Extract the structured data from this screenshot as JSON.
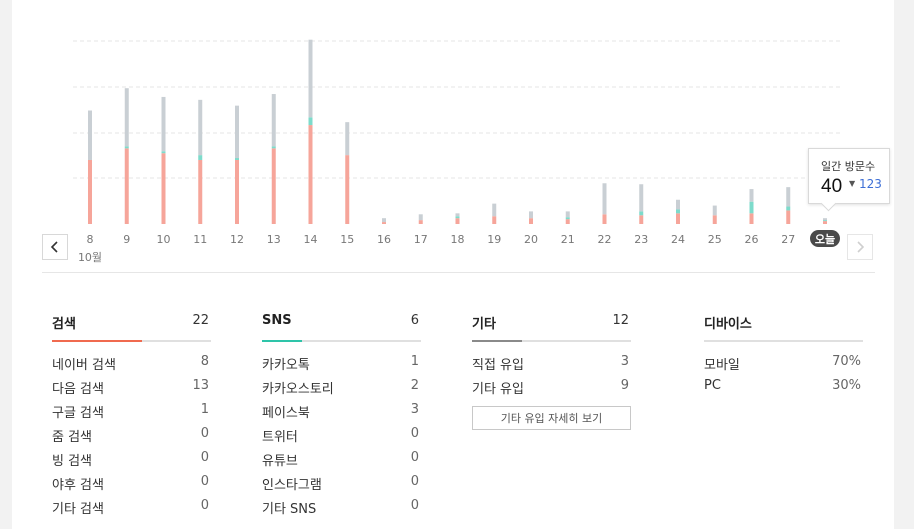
{
  "chart_data": {
    "type": "bar",
    "stacked": true,
    "tooltip_label": "일간 방문수",
    "categories": [
      "8",
      "9",
      "10",
      "11",
      "12",
      "13",
      "14",
      "15",
      "16",
      "17",
      "18",
      "19",
      "20",
      "21",
      "22",
      "23",
      "24",
      "25",
      "26",
      "27",
      "오늘"
    ],
    "month_label": "10월",
    "series": [
      {
        "color": "#f6a59a",
        "values": [
          66,
          78,
          73,
          66,
          66,
          78,
          102,
          71,
          2,
          4,
          6,
          8,
          6,
          5,
          10,
          9,
          11,
          9,
          11,
          14,
          3
        ]
      },
      {
        "color": "#7ddbcb",
        "values": [
          0,
          2,
          2,
          5,
          2,
          2,
          8,
          0,
          0,
          0,
          2,
          0,
          0,
          2,
          0,
          4,
          4,
          0,
          12,
          4,
          1
        ]
      },
      {
        "color": "#c9cfd4",
        "values": [
          51,
          60,
          56,
          57,
          54,
          54,
          80,
          34,
          4,
          6,
          3,
          13,
          7,
          6,
          32,
          28,
          10,
          10,
          13,
          20,
          2
        ]
      }
    ],
    "ylim": [
      0,
      200
    ],
    "grid": true,
    "colors": {
      "pink": "#f6a59a",
      "teal": "#7ddbcb",
      "gray": "#c9cfd4",
      "today_badge": "#4a4a4a"
    }
  },
  "tooltip": {
    "label": "일간 방문수",
    "value": "40",
    "arrow": "▼",
    "previous": "123"
  },
  "stats": {
    "search": {
      "title": "검색",
      "total": "22",
      "accent": "#f06a4f",
      "rows": [
        {
          "label": "네이버 검색",
          "value": "8"
        },
        {
          "label": "다음 검색",
          "value": "13"
        },
        {
          "label": "구글 검색",
          "value": "1"
        },
        {
          "label": "줌 검색",
          "value": "0"
        },
        {
          "label": "빙 검색",
          "value": "0"
        },
        {
          "label": "야후 검색",
          "value": "0"
        },
        {
          "label": "기타 검색",
          "value": "0"
        }
      ]
    },
    "sns": {
      "title": "SNS",
      "total": "6",
      "accent": "#2ec4a9",
      "rows": [
        {
          "label": "카카오톡",
          "value": "1"
        },
        {
          "label": "카카오스토리",
          "value": "2"
        },
        {
          "label": "페이스북",
          "value": "3"
        },
        {
          "label": "트위터",
          "value": "0"
        },
        {
          "label": "유튜브",
          "value": "0"
        },
        {
          "label": "인스타그램",
          "value": "0"
        },
        {
          "label": "기타 SNS",
          "value": "0"
        }
      ]
    },
    "etc": {
      "title": "기타",
      "total": "12",
      "accent": "#8a8a8a",
      "rows": [
        {
          "label": "직접 유입",
          "value": "3"
        },
        {
          "label": "기타 유입",
          "value": "9"
        }
      ],
      "detail_button": "기타 유입 자세히 보기"
    },
    "device": {
      "title": "디바이스",
      "rows": [
        {
          "label": "모바일",
          "value": "70%"
        },
        {
          "label": "PC",
          "value": "30%"
        }
      ]
    }
  }
}
